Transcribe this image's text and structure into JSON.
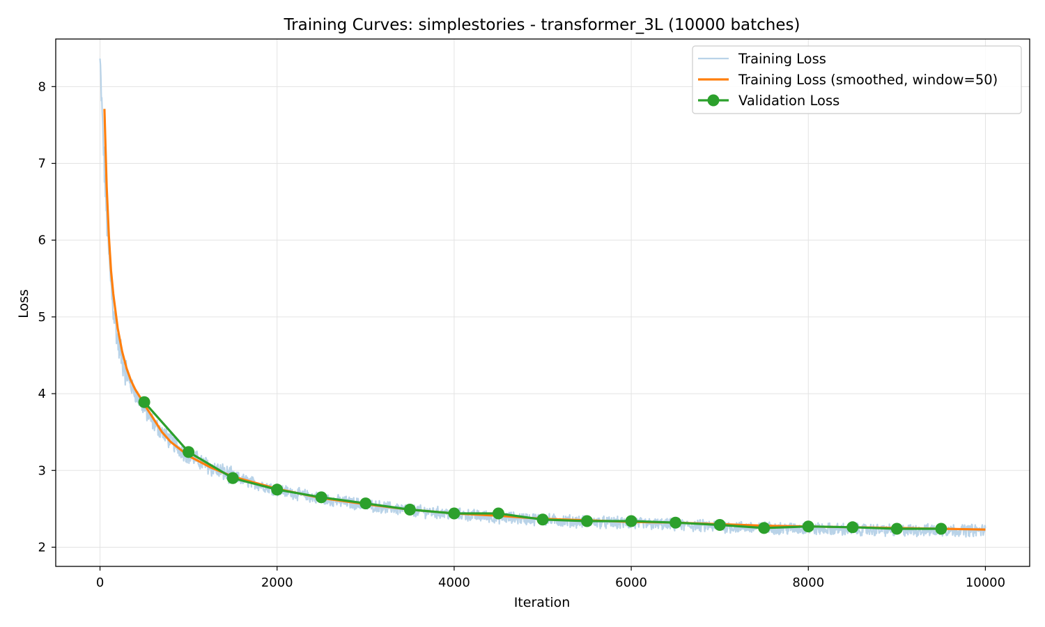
{
  "chart_data": {
    "type": "line",
    "title": "Training Curves: simplestories - transformer_3L (10000 batches)",
    "xlabel": "Iteration",
    "ylabel": "Loss",
    "xlim": [
      -500,
      10500
    ],
    "ylim": [
      1.75,
      8.62
    ],
    "xticks": [
      0,
      2000,
      4000,
      6000,
      8000,
      10000
    ],
    "yticks": [
      2,
      3,
      4,
      5,
      6,
      7,
      8
    ],
    "grid": true,
    "legend_position": "top-right",
    "colors": {
      "training_loss": "#b9d3e8",
      "training_loss_smoothed": "#ff7f0e",
      "validation_loss": "#2ca02c"
    },
    "series": [
      {
        "name": "Training Loss",
        "style": "raw-noisy",
        "x": [
          0,
          25,
          50,
          75,
          100,
          125,
          150,
          200,
          250,
          300,
          350,
          400,
          450,
          500,
          600,
          700,
          800,
          900,
          1000,
          1250,
          1500,
          1750,
          2000,
          2500,
          3000,
          3500,
          4000,
          4500,
          5000,
          5500,
          6000,
          6500,
          7000,
          7500,
          8000,
          8500,
          9000,
          9500,
          10000
        ],
        "values": [
          8.33,
          7.6,
          6.9,
          6.3,
          5.8,
          5.4,
          5.1,
          4.7,
          4.45,
          4.25,
          4.1,
          4.0,
          3.9,
          3.8,
          3.62,
          3.5,
          3.38,
          3.28,
          3.2,
          3.04,
          2.92,
          2.83,
          2.75,
          2.63,
          2.55,
          2.48,
          2.43,
          2.39,
          2.36,
          2.33,
          2.31,
          2.29,
          2.27,
          2.25,
          2.24,
          2.23,
          2.22,
          2.22,
          2.22
        ]
      },
      {
        "name": "Training Loss (smoothed, window=50)",
        "x": [
          50,
          75,
          100,
          125,
          150,
          200,
          250,
          300,
          350,
          400,
          450,
          500,
          600,
          700,
          800,
          900,
          1000,
          1250,
          1500,
          1750,
          2000,
          2500,
          3000,
          3500,
          4000,
          4500,
          5000,
          5500,
          6000,
          6500,
          7000,
          7500,
          8000,
          8500,
          9000,
          9500,
          10000
        ],
        "values": [
          7.71,
          6.7,
          6.05,
          5.6,
          5.3,
          4.85,
          4.55,
          4.33,
          4.17,
          4.05,
          3.96,
          3.86,
          3.68,
          3.5,
          3.37,
          3.28,
          3.19,
          3.04,
          2.92,
          2.84,
          2.76,
          2.64,
          2.56,
          2.49,
          2.44,
          2.41,
          2.37,
          2.35,
          2.33,
          2.32,
          2.3,
          2.28,
          2.27,
          2.26,
          2.25,
          2.24,
          2.23
        ]
      },
      {
        "name": "Validation Loss",
        "markers": true,
        "x": [
          500,
          1000,
          1500,
          2000,
          2500,
          3000,
          3500,
          4000,
          4500,
          5000,
          5500,
          6000,
          6500,
          7000,
          7500,
          8000,
          8500,
          9000,
          9500
        ],
        "values": [
          3.89,
          3.24,
          2.9,
          2.75,
          2.65,
          2.57,
          2.49,
          2.44,
          2.44,
          2.36,
          2.34,
          2.34,
          2.32,
          2.29,
          2.25,
          2.27,
          2.26,
          2.24,
          2.24
        ]
      }
    ]
  }
}
